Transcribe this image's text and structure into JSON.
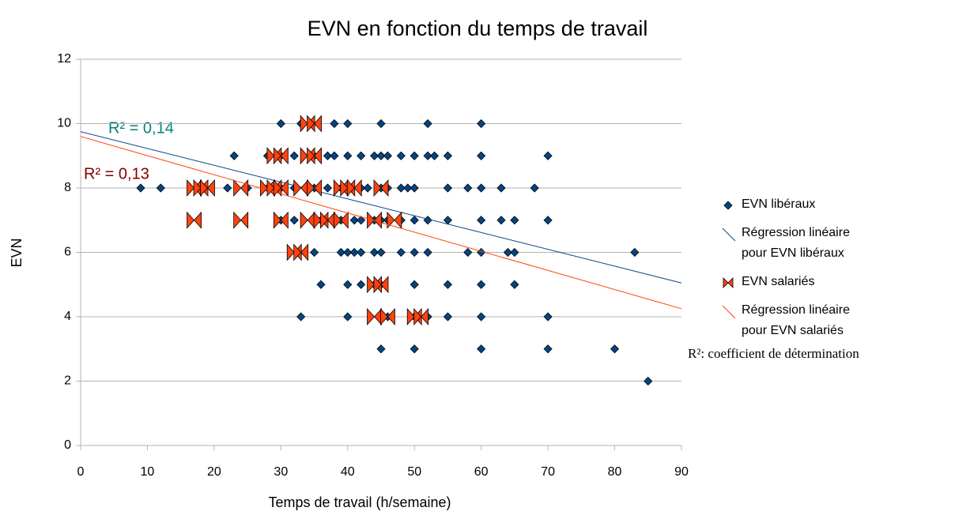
{
  "chart_data": {
    "type": "scatter",
    "title": "EVN en fonction du temps de travail",
    "xlabel": "Temps de travail (h/semaine)",
    "ylabel": "EVN",
    "xlim": [
      0,
      90
    ],
    "xticks": [
      0,
      10,
      20,
      30,
      40,
      50,
      60,
      70,
      80,
      90
    ],
    "ylim": [
      0,
      12
    ],
    "yticks": [
      0,
      2,
      4,
      6,
      8,
      10,
      12
    ],
    "grid": true,
    "annotations": [
      "R² = 0,14",
      "R² = 0,13",
      "R²: coefficient de détermination"
    ],
    "series": [
      {
        "name": "EVN libéraux",
        "type": "scatter",
        "marker": "diamond",
        "color": "#004586",
        "x": [
          30,
          33,
          38,
          40,
          45,
          52,
          60,
          23,
          28,
          30,
          32,
          35,
          37,
          38,
          40,
          42,
          44,
          45,
          46,
          48,
          50,
          52,
          53,
          55,
          60,
          70,
          9,
          12,
          22,
          25,
          28,
          30,
          32,
          34,
          35,
          37,
          39,
          40,
          42,
          43,
          45,
          46,
          48,
          49,
          50,
          55,
          58,
          60,
          63,
          68,
          30,
          32,
          35,
          36,
          38,
          39,
          41,
          42,
          44,
          45,
          46,
          48,
          50,
          52,
          55,
          60,
          63,
          65,
          70,
          35,
          39,
          40,
          41,
          42,
          44,
          45,
          48,
          50,
          52,
          58,
          60,
          64,
          65,
          83,
          36,
          40,
          42,
          44,
          45,
          50,
          55,
          60,
          65,
          33,
          40,
          45,
          46,
          50,
          52,
          55,
          60,
          70,
          45,
          50,
          60,
          70,
          80,
          85
        ],
        "values": [
          10,
          10,
          10,
          10,
          10,
          10,
          10,
          9,
          9,
          9,
          9,
          9,
          9,
          9,
          9,
          9,
          9,
          9,
          9,
          9,
          9,
          9,
          9,
          9,
          9,
          9,
          8,
          8,
          8,
          8,
          8,
          8,
          8,
          8,
          8,
          8,
          8,
          8,
          8,
          8,
          8,
          8,
          8,
          8,
          8,
          8,
          8,
          8,
          8,
          8,
          7,
          7,
          7,
          7,
          7,
          7,
          7,
          7,
          7,
          7,
          7,
          7,
          7,
          7,
          7,
          7,
          7,
          7,
          7,
          6,
          6,
          6,
          6,
          6,
          6,
          6,
          6,
          6,
          6,
          6,
          6,
          6,
          6,
          6,
          5,
          5,
          5,
          5,
          5,
          5,
          5,
          5,
          5,
          4,
          4,
          4,
          4,
          4,
          4,
          4,
          4,
          4,
          3,
          3,
          3,
          3,
          3,
          2
        ]
      },
      {
        "name": "Régression linéaire pour EVN libéraux",
        "type": "line",
        "color": "#004586",
        "x": [
          0,
          90
        ],
        "values": [
          9.75,
          5.05
        ]
      },
      {
        "name": "EVN salariés",
        "type": "scatter",
        "marker": "bowtie",
        "color": "#ff420e",
        "x": [
          34,
          35,
          29,
          30,
          34,
          35,
          17,
          18,
          19,
          24,
          28,
          29,
          30,
          33,
          35,
          39,
          40,
          41,
          45,
          17,
          24,
          30,
          34,
          36,
          37,
          39,
          44,
          47,
          32,
          33,
          44,
          45,
          44,
          46,
          50,
          51
        ],
        "values": [
          10,
          10,
          9,
          9,
          9,
          9,
          8,
          8,
          8,
          8,
          8,
          8,
          8,
          8,
          8,
          8,
          8,
          8,
          8,
          7,
          7,
          7,
          7,
          7,
          7,
          7,
          7,
          7,
          6,
          6,
          5,
          5,
          4,
          4,
          4,
          4
        ]
      },
      {
        "name": "Régression linéaire pour EVN salariés",
        "type": "line",
        "color": "#ff420e",
        "x": [
          0,
          90
        ],
        "values": [
          9.6,
          4.25
        ]
      }
    ]
  }
}
